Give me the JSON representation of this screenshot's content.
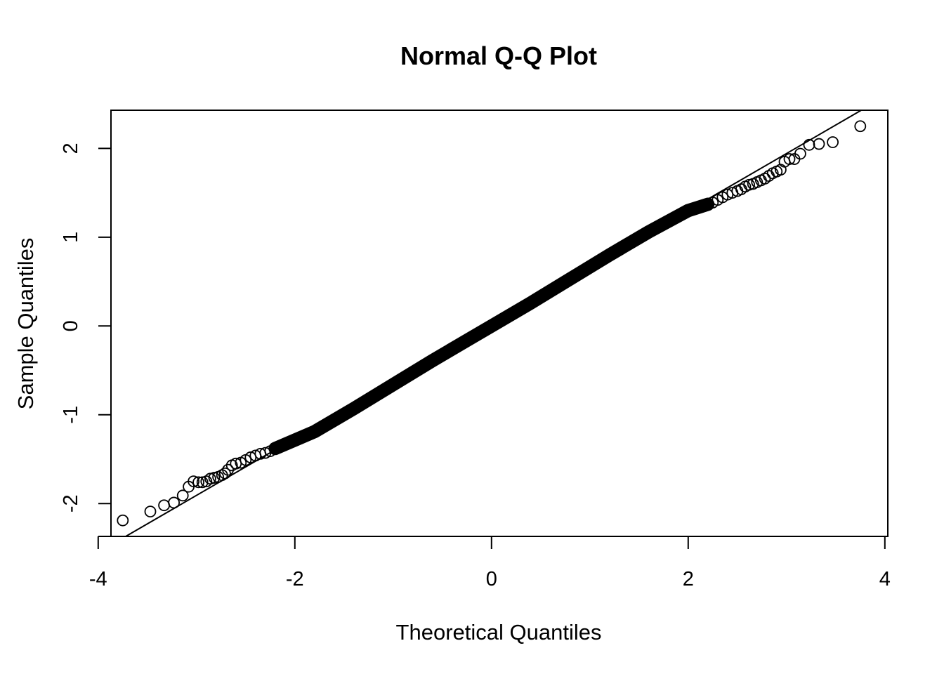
{
  "chart_data": {
    "type": "scatter",
    "title": "Normal Q-Q Plot",
    "xlabel": "Theoretical Quantiles",
    "ylabel": "Sample Quantiles",
    "xlim": [
      -3.87,
      4.03
    ],
    "ylim": [
      -2.37,
      2.43
    ],
    "xticks": [
      -4,
      -2,
      0,
      2,
      4
    ],
    "yticks": [
      -2,
      -1,
      0,
      1,
      2
    ],
    "xtick_labels": [
      "-4",
      "-2",
      "0",
      "2",
      "4"
    ],
    "ytick_labels": [
      "-2",
      "-1",
      "0",
      "1",
      "2"
    ],
    "grid": false,
    "legend": "none",
    "marker": "open-circle",
    "reference_line": {
      "x1": -3.72,
      "y1": -2.37,
      "x2": 3.76,
      "y2": 2.43
    },
    "series": [
      {
        "points": [
          [
            -3.75,
            -2.19
          ],
          [
            -3.47,
            -2.09
          ],
          [
            -3.33,
            -2.02
          ],
          [
            -3.23,
            -1.99
          ],
          [
            -3.14,
            -1.91
          ],
          [
            -3.08,
            -1.81
          ],
          [
            -3.03,
            -1.75
          ],
          [
            -2.98,
            -1.76
          ],
          [
            -2.94,
            -1.76
          ],
          [
            -2.9,
            -1.75
          ],
          [
            -2.86,
            -1.72
          ],
          [
            -2.82,
            -1.71
          ],
          [
            -2.78,
            -1.7
          ],
          [
            -2.74,
            -1.68
          ],
          [
            -2.71,
            -1.66
          ],
          [
            -2.68,
            -1.62
          ],
          [
            -2.64,
            -1.57
          ],
          [
            -2.6,
            -1.55
          ],
          [
            -2.55,
            -1.54
          ],
          [
            -2.5,
            -1.51
          ],
          [
            -2.45,
            -1.48
          ],
          [
            -2.4,
            -1.46
          ],
          [
            -2.35,
            -1.44
          ],
          [
            -2.3,
            -1.43
          ],
          [
            -2.25,
            -1.41
          ],
          [
            -2.2,
            -1.38
          ],
          [
            -2.15,
            -1.35
          ],
          [
            3.75,
            2.25
          ],
          [
            3.47,
            2.07
          ],
          [
            3.33,
            2.05
          ],
          [
            3.23,
            2.04
          ],
          [
            3.14,
            1.94
          ],
          [
            3.08,
            1.88
          ],
          [
            3.03,
            1.88
          ],
          [
            2.98,
            1.85
          ],
          [
            2.94,
            1.76
          ],
          [
            2.9,
            1.74
          ],
          [
            2.86,
            1.72
          ],
          [
            2.82,
            1.69
          ],
          [
            2.78,
            1.66
          ],
          [
            2.74,
            1.64
          ],
          [
            2.7,
            1.62
          ],
          [
            2.66,
            1.6
          ],
          [
            2.62,
            1.59
          ],
          [
            2.58,
            1.57
          ],
          [
            2.54,
            1.54
          ],
          [
            2.5,
            1.52
          ],
          [
            2.45,
            1.5
          ],
          [
            2.4,
            1.48
          ],
          [
            2.35,
            1.45
          ],
          [
            2.3,
            1.42
          ],
          [
            2.25,
            1.39
          ],
          [
            2.2,
            1.37
          ]
        ]
      }
    ]
  }
}
